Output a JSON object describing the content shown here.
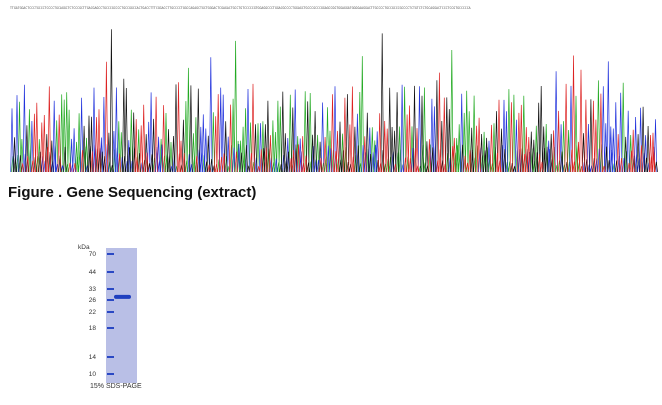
{
  "sequence_header": {
    "text": "TTGATGGACTCCCTGCCCTCCCCTGCAGGCTCTCCCGCTTGACGAGCCTGCCCGCCCCTGCCGGCCACTGACCTTTCGGACCTTGCCCCTGGCCAGAGCTGCTGGGACTCGAGACTGCCTGTCCCCCGTGGAGGCCCTGGACGCCCCTGGAGCTGCCCGCCCGGAGCCGGTGGAGGATGGGGAAGGACTTGCCCCTGCCGCCCGCCCCTCTGTCTCTGCAGGACTCCCTCCGTGCCCCCA"
  },
  "chromatogram": {
    "trace_colors": {
      "A": "#22aa22",
      "C": "#2233dd",
      "G": "#111111",
      "T": "#dd2222"
    },
    "icon": "chromatogram-trace"
  },
  "figure_caption": "Figure . Gene Sequencing (extract)",
  "gel": {
    "unit_label": "kDa",
    "ladder": [
      "70",
      "44",
      "33",
      "26",
      "22",
      "18",
      "14",
      "10"
    ],
    "ladder_kda": [
      70,
      44,
      33,
      26,
      22,
      18,
      14,
      10
    ],
    "sample_band_kda": 28,
    "caption": "15% SDS-PAGE",
    "gel_color": "#b9bfe6",
    "band_color": "#1f3fbf"
  }
}
